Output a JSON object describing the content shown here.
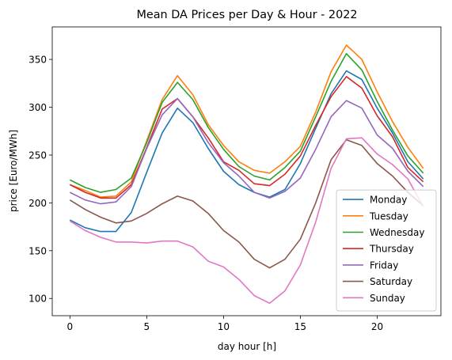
{
  "chart_data": {
    "type": "line",
    "title": "Mean DA Prices per Day & Hour - 2022",
    "xlabel": "day hour [h]",
    "ylabel": "price [Euro/MWh]",
    "xlim": [
      -1.15,
      24.15
    ],
    "ylim": [
      82,
      384
    ],
    "xticks": [
      0,
      5,
      10,
      15,
      20
    ],
    "yticks": [
      100,
      150,
      200,
      250,
      300,
      350
    ],
    "grid": false,
    "legend_position": "lower right",
    "x": [
      0,
      1,
      2,
      3,
      4,
      5,
      6,
      7,
      8,
      9,
      10,
      11,
      12,
      13,
      14,
      15,
      16,
      17,
      18,
      19,
      20,
      21,
      22,
      23
    ],
    "series": [
      {
        "name": "Monday",
        "color": "#1f77b4",
        "values": [
          182,
          174,
          170,
          170,
          190,
          232,
          273,
          299,
          284,
          257,
          233,
          219,
          211,
          206,
          214,
          241,
          278,
          314,
          338,
          329,
          299,
          273,
          243,
          225
        ]
      },
      {
        "name": "Tuesday",
        "color": "#ff7f0e",
        "values": [
          219,
          213,
          206,
          207,
          222,
          265,
          308,
          333,
          313,
          282,
          260,
          243,
          234,
          231,
          243,
          259,
          295,
          337,
          365,
          350,
          316,
          285,
          258,
          236
        ]
      },
      {
        "name": "Wednesday",
        "color": "#2ca02c",
        "values": [
          224,
          216,
          211,
          214,
          226,
          263,
          305,
          326,
          308,
          279,
          256,
          238,
          228,
          224,
          237,
          254,
          290,
          327,
          356,
          339,
          306,
          276,
          249,
          231
        ]
      },
      {
        "name": "Thursday",
        "color": "#d62728",
        "values": [
          219,
          211,
          205,
          205,
          219,
          258,
          298,
          309,
          290,
          268,
          243,
          234,
          220,
          218,
          230,
          249,
          281,
          311,
          332,
          320,
          291,
          269,
          237,
          222
        ]
      },
      {
        "name": "Friday",
        "color": "#9467bd",
        "values": [
          211,
          203,
          199,
          201,
          217,
          257,
          292,
          309,
          290,
          263,
          242,
          228,
          211,
          205,
          212,
          226,
          256,
          290,
          307,
          299,
          271,
          257,
          233,
          217
        ]
      },
      {
        "name": "Saturday",
        "color": "#8c564b",
        "values": [
          203,
          193,
          185,
          179,
          181,
          189,
          199,
          207,
          202,
          189,
          171,
          159,
          141,
          132,
          141,
          162,
          200,
          245,
          266,
          260,
          241,
          228,
          211,
          197
        ]
      },
      {
        "name": "Sunday",
        "color": "#e377c2",
        "values": [
          181,
          171,
          164,
          159,
          159,
          158,
          160,
          160,
          154,
          139,
          133,
          120,
          103,
          95,
          108,
          135,
          180,
          236,
          267,
          268,
          251,
          240,
          225,
          196
        ]
      }
    ]
  }
}
